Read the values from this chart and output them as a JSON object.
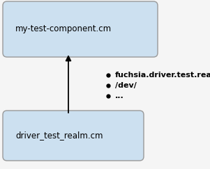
{
  "bg_color": "#eeeeee",
  "box_fill": "#cce0f0",
  "box_edge": "#999999",
  "box1_label": "my-test-component.cm",
  "box2_label": "driver_test_realm.cm",
  "bullet_items": [
    "fuchsia.driver.test.realm",
    "/dev/",
    "..."
  ],
  "font_size_box": 8.5,
  "font_size_bullet": 8.0,
  "fig_bg": "#f5f5f5"
}
